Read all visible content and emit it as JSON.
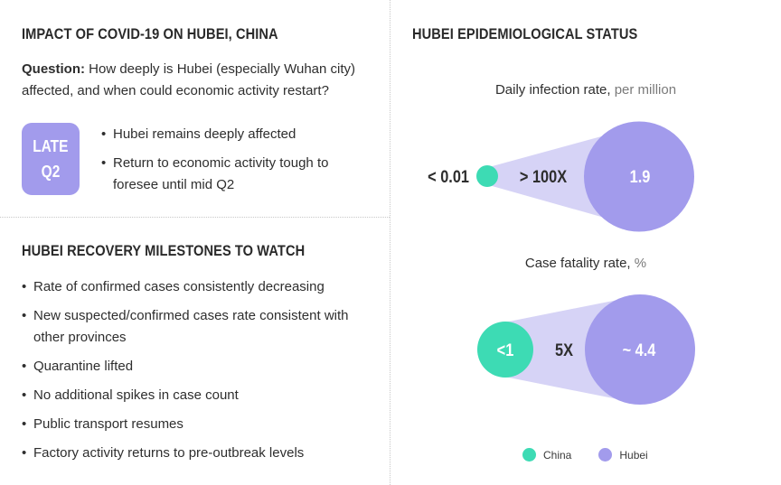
{
  "left": {
    "impact_title": "IMPACT OF COVID-19 ON HUBEI, CHINA",
    "question_label": "Question:",
    "question_text": " How deeply is Hubei (especially Wuhan city) affected, and when could economic activity restart?",
    "badge_line1": "LATE",
    "badge_line2": "Q2",
    "impact_bullets": [
      "Hubei remains deeply affected",
      "Return to economic activity tough to foresee until mid Q2"
    ],
    "milestones_title": "HUBEI RECOVERY MILESTONES TO WATCH",
    "milestones": [
      "Rate of confirmed cases consistently decreasing",
      "New suspected/confirmed cases rate consistent with other provinces",
      "Quarantine lifted",
      "No additional spikes in case count",
      "Public transport resumes",
      "Factory activity returns to pre-outbreak levels"
    ]
  },
  "right": {
    "title": "HUBEI EPIDEMIOLOGICAL STATUS",
    "infection": {
      "label": "Daily infection rate,",
      "unit": "per million",
      "china_value": "< 0.01",
      "ratio": "> 100X",
      "hubei_value": "1.9"
    },
    "fatality": {
      "label": "Case fatality rate,",
      "unit": "%",
      "china_value": "<1",
      "ratio": "5X",
      "hubei_value": "~ 4.4"
    },
    "legend": [
      {
        "name": "China",
        "color": "#3ddbb4"
      },
      {
        "name": "Hubei",
        "color": "#a29bec"
      }
    ]
  },
  "colors": {
    "china": "#3ddbb4",
    "hubei": "#a29bec",
    "cone": "#d6d3f6",
    "badge": "#a29bec"
  }
}
